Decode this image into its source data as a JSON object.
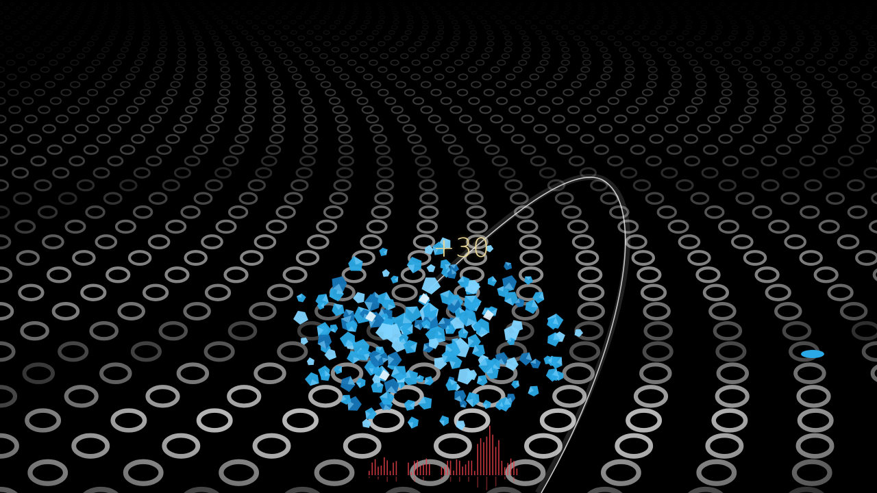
{
  "hud": {
    "score_popup": "+30"
  },
  "colors": {
    "background": "#000000",
    "floor_ring": "#ffffff",
    "shard": "#2aa9e6",
    "shard_light": "#7fd4ff",
    "shard_dark": "#1677b8",
    "trail": "#e8e8e8",
    "score_text": "#e9d79a",
    "audio_bars": "#e8404a"
  },
  "icons": {
    "shards": "shard-fragment-icon",
    "target": "swing-trail-icon",
    "audio": "audio-visualizer-icon"
  }
}
